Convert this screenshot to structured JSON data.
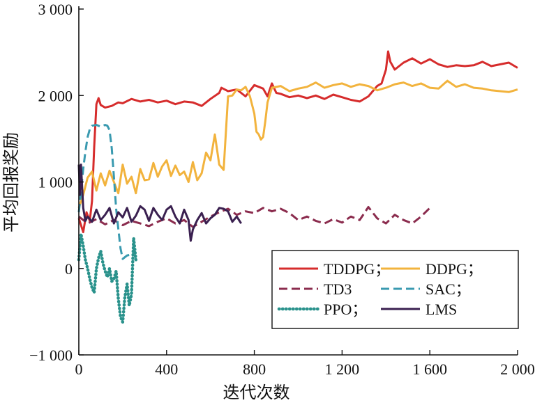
{
  "chart_data": {
    "type": "line",
    "xlabel": "迭代次数",
    "ylabel": "平均回报奖励",
    "xlim": [
      0,
      2000
    ],
    "ylim": [
      -1000,
      3000
    ],
    "x_ticks": [
      0,
      400,
      800,
      1200,
      1600,
      2000
    ],
    "x_tick_labels": [
      "0",
      "400",
      "800",
      "1 200",
      "1 600",
      "2 000"
    ],
    "y_ticks": [
      3000,
      2000,
      1000,
      0,
      -1000
    ],
    "y_tick_labels": [
      "3 000",
      "2 000",
      "1 000",
      "0",
      "−1 000"
    ],
    "grid": false,
    "legend_position": "bottom-right",
    "series": [
      {
        "name": "TDDPG；",
        "color": "#d62c2c",
        "style": "solid",
        "x": [
          0,
          20,
          35,
          50,
          60,
          70,
          80,
          90,
          100,
          120,
          150,
          180,
          200,
          240,
          280,
          320,
          360,
          400,
          440,
          480,
          520,
          560,
          600,
          640,
          650,
          680,
          720,
          760,
          800,
          840,
          860,
          880,
          900,
          920,
          960,
          1000,
          1040,
          1080,
          1120,
          1160,
          1200,
          1240,
          1280,
          1320,
          1360,
          1380,
          1400,
          1410,
          1420,
          1440,
          1480,
          1520,
          1560,
          1600,
          1640,
          1680,
          1720,
          1760,
          1800,
          1840,
          1880,
          1920,
          1960,
          2000
        ],
        "values": [
          580,
          420,
          650,
          550,
          780,
          1400,
          1900,
          1970,
          1890,
          1860,
          1880,
          1920,
          1910,
          1960,
          1930,
          1950,
          1920,
          1940,
          1900,
          1930,
          1920,
          1880,
          1960,
          2030,
          2090,
          2050,
          2070,
          1990,
          2120,
          2080,
          1990,
          2140,
          2030,
          2020,
          1980,
          2000,
          1970,
          2000,
          1960,
          2010,
          1980,
          1950,
          1930,
          1990,
          2110,
          2140,
          2300,
          2510,
          2390,
          2300,
          2380,
          2430,
          2370,
          2420,
          2360,
          2330,
          2350,
          2340,
          2350,
          2390,
          2340,
          2360,
          2380,
          2320
        ]
      },
      {
        "name": "DDPG；",
        "color": "#f2b33d",
        "style": "solid",
        "x": [
          0,
          20,
          40,
          60,
          80,
          100,
          120,
          140,
          160,
          180,
          200,
          220,
          240,
          260,
          280,
          300,
          320,
          340,
          360,
          380,
          400,
          420,
          440,
          460,
          480,
          500,
          520,
          540,
          560,
          580,
          600,
          620,
          640,
          660,
          680,
          700,
          720,
          740,
          760,
          780,
          800,
          810,
          820,
          830,
          840,
          850,
          860,
          880,
          920,
          960,
          1000,
          1040,
          1080,
          1120,
          1160,
          1200,
          1240,
          1280,
          1320,
          1360,
          1400,
          1440,
          1480,
          1520,
          1560,
          1600,
          1640,
          1680,
          1720,
          1760,
          1800,
          1840,
          1880,
          1920,
          1960,
          2000
        ],
        "values": [
          700,
          850,
          1050,
          1120,
          900,
          1100,
          960,
          1130,
          1000,
          870,
          1200,
          980,
          1060,
          870,
          1150,
          1020,
          1030,
          1220,
          1060,
          1180,
          1250,
          1070,
          1190,
          1080,
          1120,
          1000,
          1230,
          1020,
          1100,
          1340,
          1250,
          1550,
          1200,
          1140,
          1990,
          2000,
          2070,
          2060,
          2100,
          1990,
          1790,
          1580,
          1550,
          1490,
          1520,
          1700,
          1920,
          2090,
          2110,
          2050,
          2080,
          2100,
          2150,
          2090,
          2120,
          2140,
          2100,
          2130,
          2110,
          2060,
          2090,
          2130,
          2150,
          2110,
          2140,
          2090,
          2080,
          2170,
          2100,
          2130,
          2090,
          2080,
          2060,
          2050,
          2040,
          2070
        ]
      },
      {
        "name": "TD3",
        "color": "#8b2c4e",
        "style": "dashed",
        "x": [
          0,
          40,
          80,
          120,
          160,
          200,
          240,
          280,
          320,
          360,
          400,
          440,
          480,
          520,
          560,
          600,
          640,
          680,
          720,
          760,
          800,
          840,
          880,
          920,
          960,
          1000,
          1040,
          1080,
          1120,
          1160,
          1200,
          1240,
          1280,
          1320,
          1360,
          1400,
          1440,
          1480,
          1520,
          1560,
          1600
        ],
        "values": [
          600,
          520,
          570,
          510,
          560,
          500,
          550,
          520,
          490,
          540,
          580,
          520,
          560,
          480,
          540,
          600,
          650,
          690,
          620,
          660,
          640,
          700,
          660,
          690,
          640,
          560,
          600,
          550,
          520,
          570,
          530,
          600,
          560,
          710,
          580,
          520,
          620,
          560,
          520,
          600,
          700
        ]
      },
      {
        "name": "SAC；",
        "color": "#3a9ab0",
        "style": "dashed",
        "x": [
          0,
          10,
          20,
          30,
          40,
          50,
          60,
          80,
          100,
          120,
          130,
          140,
          150,
          160,
          170,
          180,
          190,
          200,
          220,
          240
        ],
        "values": [
          650,
          880,
          1150,
          1350,
          1520,
          1610,
          1650,
          1660,
          1640,
          1660,
          1650,
          1600,
          1390,
          1060,
          690,
          460,
          230,
          110,
          150,
          160
        ]
      },
      {
        "name": "PPO；",
        "color": "#2a928c",
        "style": "dotted",
        "x": [
          0,
          10,
          20,
          30,
          40,
          50,
          60,
          70,
          80,
          90,
          100,
          110,
          120,
          130,
          140,
          150,
          160,
          170,
          180,
          190,
          200,
          210,
          220,
          230,
          240,
          250,
          260
        ],
        "values": [
          100,
          400,
          260,
          100,
          0,
          -120,
          -220,
          -280,
          0,
          120,
          200,
          60,
          -30,
          -100,
          0,
          -150,
          -120,
          -30,
          -350,
          -560,
          -620,
          -330,
          -180,
          -430,
          -300,
          350,
          100
        ]
      },
      {
        "name": "LMS",
        "color": "#3a2050",
        "style": "solid",
        "x": [
          0,
          5,
          10,
          20,
          30,
          40,
          60,
          80,
          100,
          120,
          140,
          160,
          180,
          200,
          220,
          240,
          260,
          280,
          300,
          320,
          340,
          360,
          380,
          400,
          420,
          440,
          460,
          480,
          500,
          510,
          520,
          540,
          560,
          580,
          600,
          620,
          640,
          660,
          680,
          700,
          720,
          740
        ],
        "values": [
          1200,
          850,
          1200,
          700,
          550,
          600,
          540,
          680,
          560,
          620,
          700,
          520,
          650,
          590,
          700,
          540,
          610,
          720,
          680,
          550,
          700,
          620,
          560,
          680,
          720,
          600,
          520,
          680,
          560,
          320,
          450,
          560,
          640,
          520,
          580,
          620,
          700,
          690,
          660,
          540,
          600,
          520
        ]
      }
    ]
  }
}
